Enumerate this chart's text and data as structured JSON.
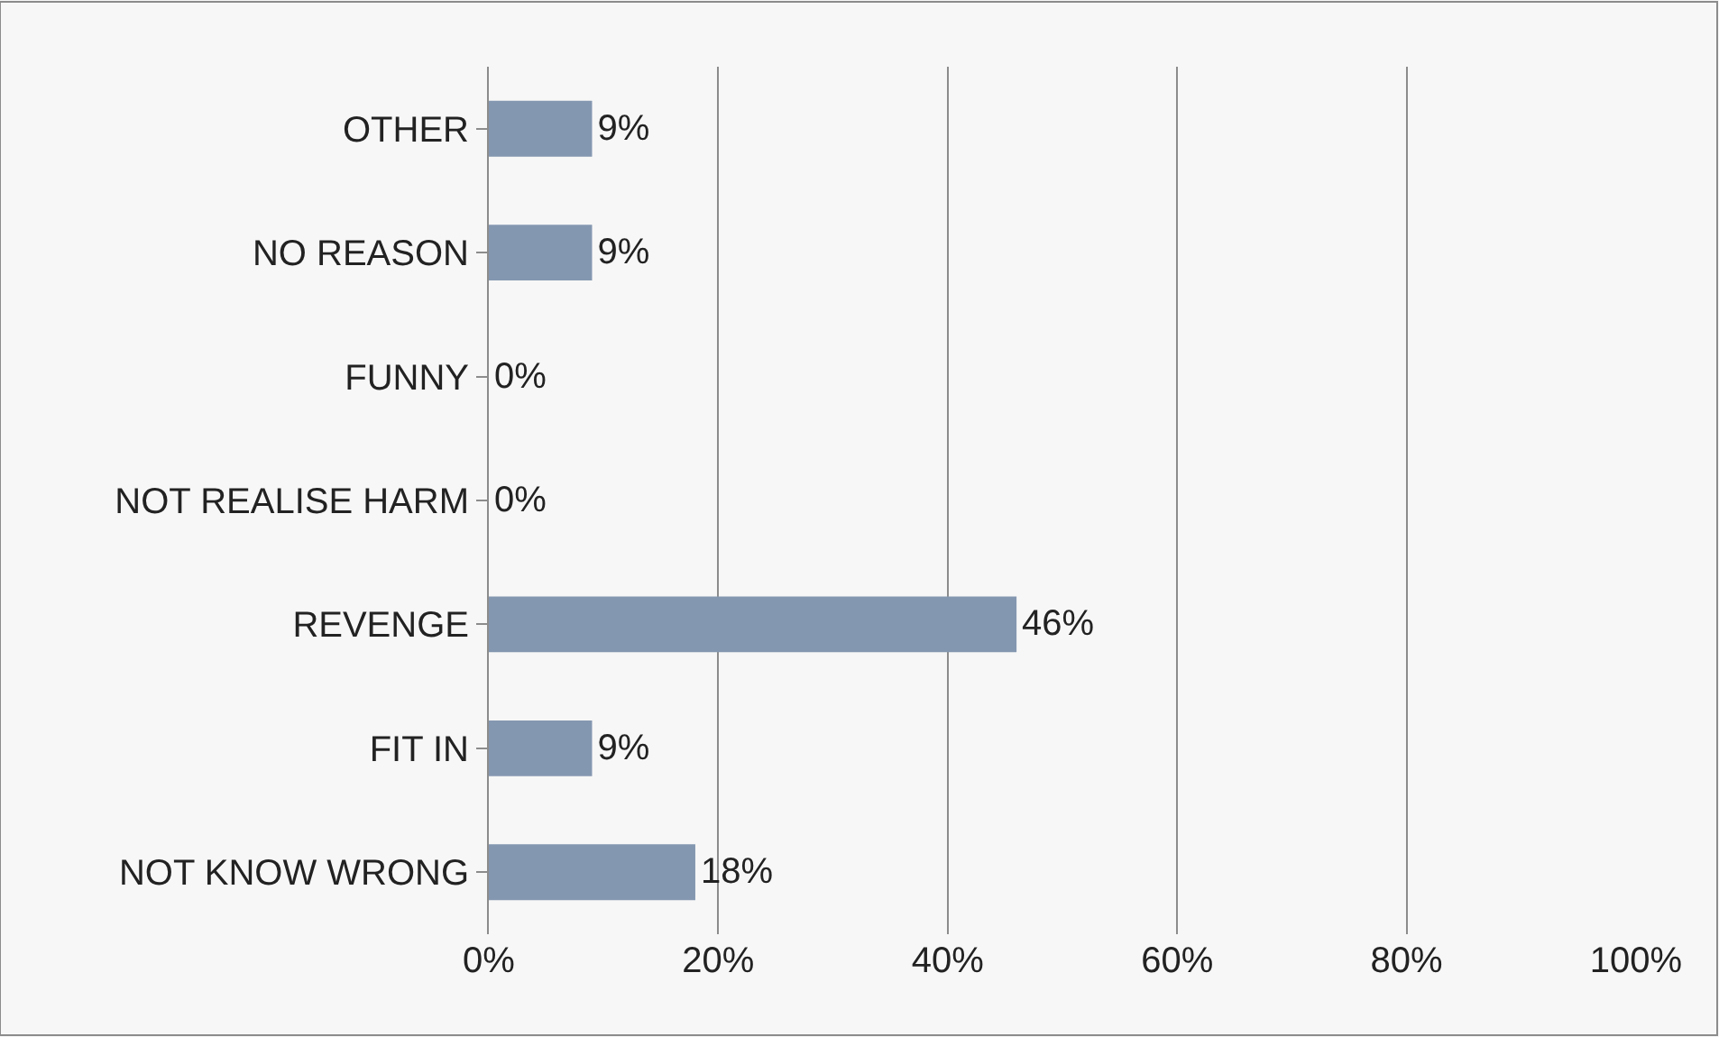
{
  "chart_data": {
    "type": "bar",
    "orientation": "horizontal",
    "categories": [
      "OTHER",
      "NO REASON",
      "FUNNY",
      "NOT REALISE HARM",
      "REVENGE",
      "FIT IN",
      "NOT KNOW WRONG"
    ],
    "values": [
      9,
      9,
      0,
      0,
      46,
      9,
      18
    ],
    "value_labels": [
      "9%",
      "9%",
      "0%",
      "0%",
      "46%",
      "9%",
      "18%"
    ],
    "color": "#8497b0",
    "xlim": [
      0,
      100
    ],
    "xticks": [
      {
        "value": 0,
        "label": "0%"
      },
      {
        "value": 20,
        "label": "20%"
      },
      {
        "value": 40,
        "label": "40%"
      },
      {
        "value": 60,
        "label": "60%"
      },
      {
        "value": 80,
        "label": "80%"
      },
      {
        "value": 100,
        "label": "100%"
      }
    ],
    "grid": "x",
    "legend": false
  }
}
